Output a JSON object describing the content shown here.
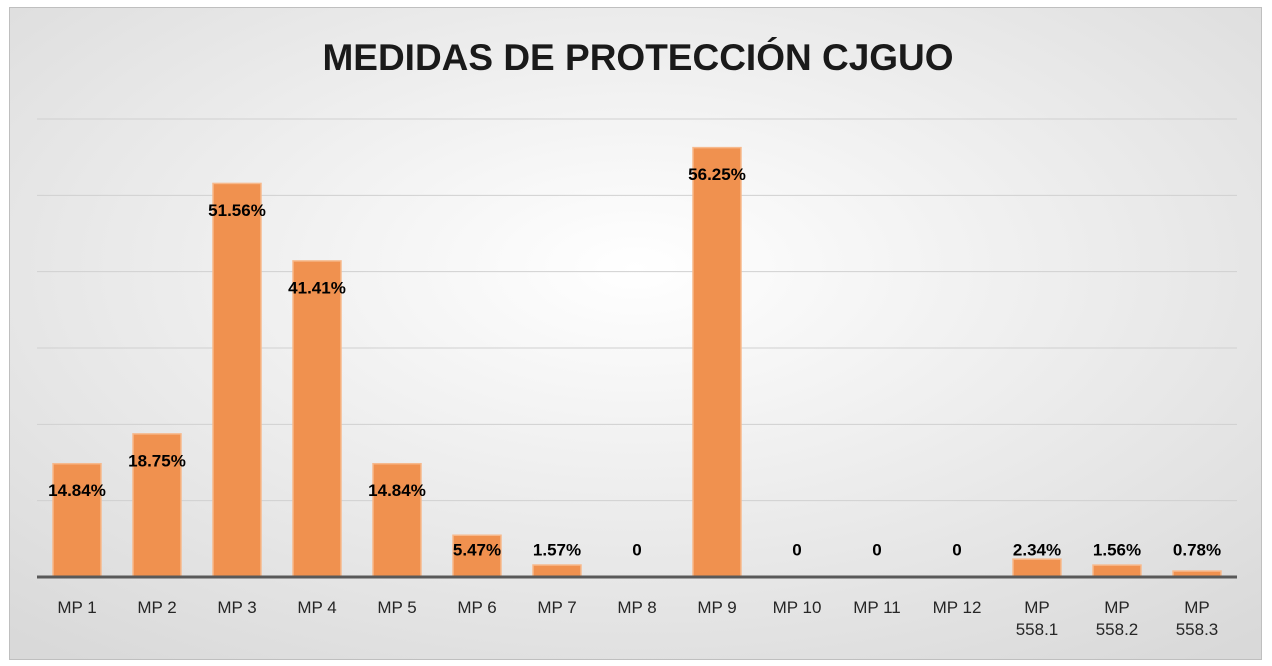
{
  "chart_data": {
    "type": "bar",
    "title": "MEDIDAS DE PROTECCIÓN CJGUO",
    "categories": [
      "MP 1",
      "MP 2",
      "MP 3",
      "MP 4",
      "MP 5",
      "MP 6",
      "MP 7",
      "MP 8",
      "MP 9",
      "MP 10",
      "MP 11",
      "MP 12",
      "MP 558.1",
      "MP 558.2",
      "MP 558.3"
    ],
    "values": [
      14.84,
      18.75,
      51.56,
      41.41,
      14.84,
      5.47,
      1.57,
      0,
      56.25,
      0,
      0,
      0,
      2.34,
      1.56,
      0.78
    ],
    "value_labels": [
      "14.84%",
      "18.75%",
      "51.56%",
      "41.41%",
      "14.84%",
      "5.47%",
      "1.57%",
      "0",
      "56.25%",
      "0",
      "0",
      "0",
      "2.34%",
      "1.56%",
      "0.78%"
    ],
    "color": "#f0914f",
    "ylim": [
      0,
      60
    ],
    "yticks": [
      0,
      10,
      20,
      30,
      40,
      50,
      60
    ],
    "grid": true
  }
}
